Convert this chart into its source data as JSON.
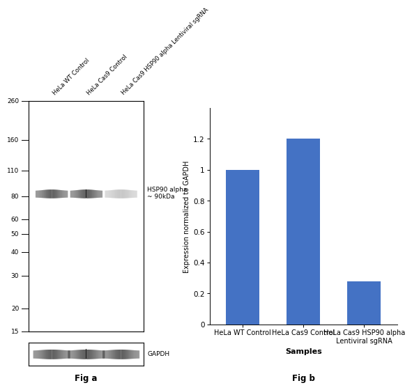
{
  "fig_a": {
    "title": "Fig a",
    "lane_labels": [
      "HeLa WT Control",
      "HeLa Cas9 Control",
      "HeLa Cas9 HSP90 alpha Lentiviral sgRNA"
    ],
    "mw_markers": [
      260,
      160,
      110,
      80,
      60,
      50,
      40,
      30,
      20,
      15
    ],
    "hsp90_band_label": "HSP90 alpha\n~ 90kDa",
    "gapdh_label": "GAPDH",
    "band_color_dark": "#1a1a1a",
    "band_color_light": "#b0b0b0",
    "gel_bg": "#ffffff"
  },
  "fig_b": {
    "title": "Fig b",
    "categories": [
      "HeLa WT Control",
      "HeLa Cas9 Control",
      "HeLa Cas9 HSP90 alpha\nLentiviral sgRNA"
    ],
    "values": [
      1.0,
      1.2,
      0.28
    ],
    "bar_color": "#4472C4",
    "xlabel": "Samples",
    "ylabel": "Expression normalized to GAPDH",
    "ylim": [
      0,
      1.4
    ],
    "yticks": [
      0.0,
      0.2,
      0.4,
      0.6,
      0.8,
      1.0,
      1.2
    ]
  }
}
